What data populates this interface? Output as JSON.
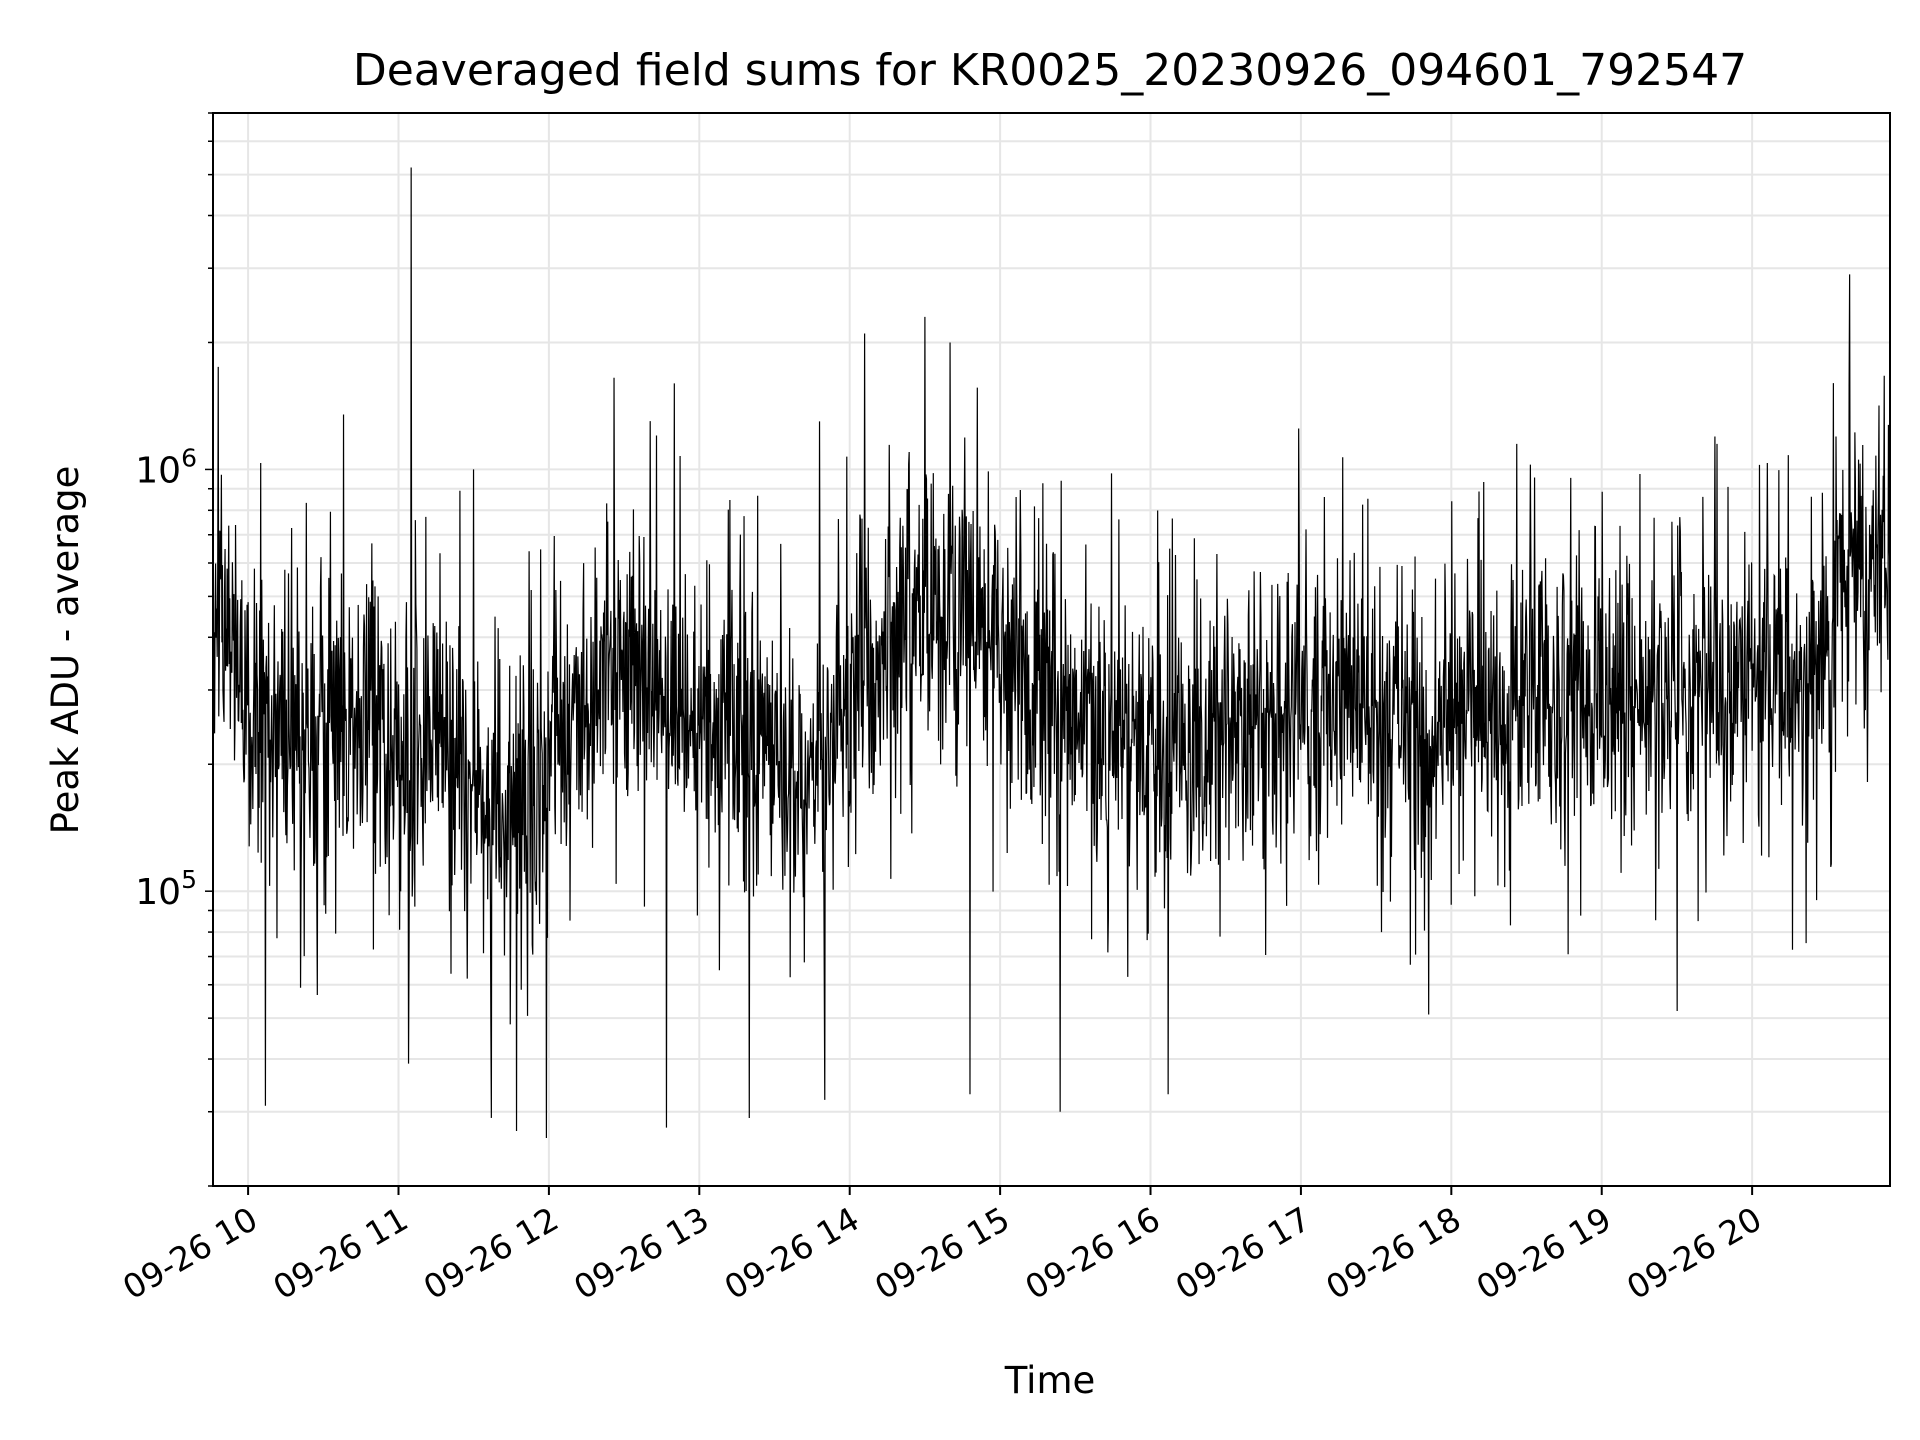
{
  "chart_data": {
    "type": "line",
    "title": "Deaveraged field sums for KR0025_20230926_094601_792547",
    "xlabel": "Time",
    "ylabel": "Peak ADU - average",
    "y_scale": "log",
    "ylim": [
      20000,
      7000000
    ],
    "xlim": [
      "2023-09-26T09:46",
      "2023-09-26T20:55"
    ],
    "x_ticks": [
      {
        "t": "2023-09-26T10:00",
        "label": "09-26 10"
      },
      {
        "t": "2023-09-26T11:00",
        "label": "09-26 11"
      },
      {
        "t": "2023-09-26T12:00",
        "label": "09-26 12"
      },
      {
        "t": "2023-09-26T13:00",
        "label": "09-26 13"
      },
      {
        "t": "2023-09-26T14:00",
        "label": "09-26 14"
      },
      {
        "t": "2023-09-26T15:00",
        "label": "09-26 15"
      },
      {
        "t": "2023-09-26T16:00",
        "label": "09-26 16"
      },
      {
        "t": "2023-09-26T17:00",
        "label": "09-26 17"
      },
      {
        "t": "2023-09-26T18:00",
        "label": "09-26 18"
      },
      {
        "t": "2023-09-26T19:00",
        "label": "09-26 19"
      },
      {
        "t": "2023-09-26T20:00",
        "label": "09-26 20"
      }
    ],
    "y_ticks": [
      {
        "value": 100000,
        "base": "10",
        "exp": "5"
      },
      {
        "value": 1000000,
        "base": "10",
        "exp": "6"
      }
    ],
    "grid": true,
    "line_color": "#000000",
    "grid_color": "#e6e6e6",
    "series": [
      {
        "x": [
          "2023-09-26T09:46",
          "2023-09-26T09:50",
          "2023-09-26T09:55",
          "2023-09-26T10:08",
          "2023-09-26T10:20",
          "2023-09-26T10:35",
          "2023-09-26T10:50",
          "2023-09-26T11:03",
          "2023-09-26T11:15",
          "2023-09-26T11:25",
          "2023-09-26T11:40",
          "2023-09-26T11:55",
          "2023-09-26T12:10",
          "2023-09-26T12:25",
          "2023-09-26T12:45",
          "2023-09-26T13:00",
          "2023-09-26T13:20",
          "2023-09-26T13:45",
          "2023-09-26T14:05",
          "2023-09-26T14:30",
          "2023-09-26T14:50",
          "2023-09-26T15:10",
          "2023-09-26T15:30",
          "2023-09-26T15:50",
          "2023-09-26T16:10",
          "2023-09-26T16:40",
          "2023-09-26T17:10",
          "2023-09-26T17:40",
          "2023-09-26T18:10",
          "2023-09-26T18:40",
          "2023-09-26T19:10",
          "2023-09-26T19:40",
          "2023-09-26T20:00",
          "2023-09-26T20:20",
          "2023-09-26T20:35",
          "2023-09-26T20:55"
        ],
        "values": [
          400000,
          450000,
          350000,
          250000,
          220000,
          230000,
          280000,
          170000,
          250000,
          200000,
          160000,
          170000,
          260000,
          320000,
          330000,
          250000,
          240000,
          190000,
          330000,
          460000,
          440000,
          320000,
          270000,
          240000,
          220000,
          250000,
          300000,
          260000,
          270000,
          260000,
          290000,
          310000,
          330000,
          280000,
          520000,
          600000
        ]
      }
    ],
    "spikes": [
      {
        "t": "2023-09-26T11:05",
        "value": 5200000,
        "dir": "up"
      },
      {
        "t": "2023-09-26T14:30",
        "value": 2300000,
        "dir": "up"
      },
      {
        "t": "2023-09-26T14:06",
        "value": 2100000,
        "dir": "up"
      },
      {
        "t": "2023-09-26T14:40",
        "value": 2000000,
        "dir": "up"
      },
      {
        "t": "2023-09-26T20:39",
        "value": 2900000,
        "dir": "up"
      },
      {
        "t": "2023-09-26T09:48",
        "value": 1750000,
        "dir": "up"
      },
      {
        "t": "2023-09-26T12:26",
        "value": 1650000,
        "dir": "up"
      },
      {
        "t": "2023-09-26T12:50",
        "value": 1600000,
        "dir": "up"
      },
      {
        "t": "2023-09-26T10:38",
        "value": 1350000,
        "dir": "up"
      },
      {
        "t": "2023-09-26T16:59",
        "value": 1250000,
        "dir": "up"
      },
      {
        "t": "2023-09-26T13:48",
        "value": 1300000,
        "dir": "up"
      },
      {
        "t": "2023-09-26T18:26",
        "value": 1150000,
        "dir": "up"
      },
      {
        "t": "2023-09-26T19:46",
        "value": 1150000,
        "dir": "up"
      },
      {
        "t": "2023-09-26T11:30",
        "value": 1000000,
        "dir": "up"
      },
      {
        "t": "2023-09-26T10:07",
        "value": 31000,
        "dir": "down"
      },
      {
        "t": "2023-09-26T11:59",
        "value": 26000,
        "dir": "down"
      },
      {
        "t": "2023-09-26T11:47",
        "value": 27000,
        "dir": "down"
      },
      {
        "t": "2023-09-26T12:47",
        "value": 27500,
        "dir": "down"
      },
      {
        "t": "2023-09-26T13:20",
        "value": 29000,
        "dir": "down"
      },
      {
        "t": "2023-09-26T11:37",
        "value": 29000,
        "dir": "down"
      },
      {
        "t": "2023-09-26T13:50",
        "value": 32000,
        "dir": "down"
      },
      {
        "t": "2023-09-26T15:24",
        "value": 30000,
        "dir": "down"
      },
      {
        "t": "2023-09-26T16:07",
        "value": 33000,
        "dir": "down"
      },
      {
        "t": "2023-09-26T11:04",
        "value": 39000,
        "dir": "down"
      },
      {
        "t": "2023-09-26T14:48",
        "value": 33000,
        "dir": "down"
      },
      {
        "t": "2023-09-26T17:51",
        "value": 51000,
        "dir": "down"
      },
      {
        "t": "2023-09-26T19:30",
        "value": 52000,
        "dir": "down"
      }
    ]
  }
}
